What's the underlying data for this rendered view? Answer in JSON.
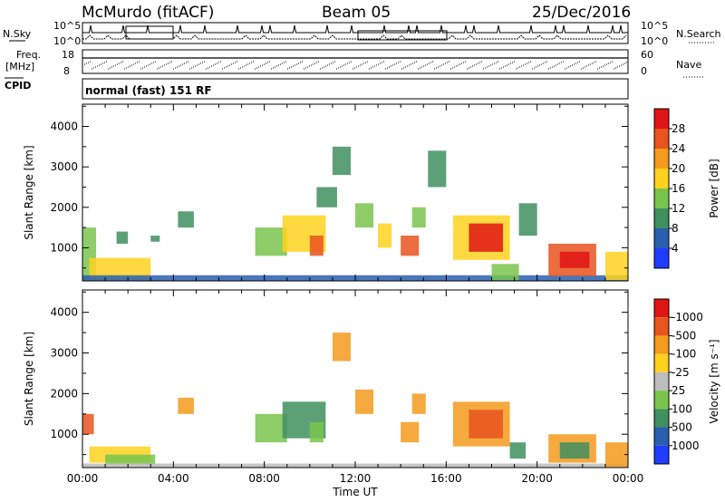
{
  "header": {
    "station": "McMurdo (fitACF)",
    "beam": "Beam 05",
    "date": "25/Dec/2016"
  },
  "status_panel": {
    "nsky_label": "N.Sky",
    "nsearch_label": "N.Search",
    "left_ticks": [
      "10^5",
      "10^0"
    ],
    "right_ticks": [
      "10^5",
      "10^0"
    ],
    "freq_label": "Freq.",
    "freq_unit": "[MHz]",
    "freq_ticks": [
      "18",
      "8"
    ],
    "nave_label": "Nave",
    "nave_ticks": [
      "60",
      "0"
    ],
    "cpid_label": "CPID",
    "cpid_text": "normal (fast) 151 RF"
  },
  "chart_data": [
    {
      "type": "heatmap",
      "title": "",
      "ylabel": "Slant Range [km]",
      "xlabel": "",
      "x_range_hours": [
        0,
        24
      ],
      "ylim": [
        180,
        4550
      ],
      "yticks": [
        1000,
        2000,
        3000,
        4000
      ],
      "colorbar_label": "Power [dB]",
      "colorbar_ticks": [
        "4",
        "8",
        "12",
        "16",
        "20",
        "24",
        "28"
      ],
      "colorbar_colors": [
        "#1f3cff",
        "#2a5fb0",
        "#3f8f5f",
        "#7ac44d",
        "#ffd21e",
        "#f59a1c",
        "#e8541e",
        "#e01414"
      ],
      "patches": [
        {
          "t0": 0.0,
          "t1": 0.6,
          "r0": 200,
          "r1": 1500,
          "c": 3
        },
        {
          "t0": 0.3,
          "t1": 3.0,
          "r0": 200,
          "r1": 750,
          "c": 4
        },
        {
          "t0": 0.0,
          "t1": 24.0,
          "r0": 190,
          "r1": 320,
          "c": 1
        },
        {
          "t0": 1.5,
          "t1": 2.0,
          "r0": 1100,
          "r1": 1400,
          "c": 2
        },
        {
          "t0": 3.0,
          "t1": 3.4,
          "r0": 1150,
          "r1": 1300,
          "c": 2
        },
        {
          "t0": 4.2,
          "t1": 4.9,
          "r0": 1500,
          "r1": 1900,
          "c": 2
        },
        {
          "t0": 7.6,
          "t1": 9.0,
          "r0": 800,
          "r1": 1500,
          "c": 3
        },
        {
          "t0": 8.8,
          "t1": 10.7,
          "r0": 900,
          "r1": 1800,
          "c": 4
        },
        {
          "t0": 10.0,
          "t1": 10.6,
          "r0": 800,
          "r1": 1300,
          "c": 6
        },
        {
          "t0": 10.3,
          "t1": 11.2,
          "r0": 2000,
          "r1": 2500,
          "c": 2
        },
        {
          "t0": 11.0,
          "t1": 11.8,
          "r0": 2800,
          "r1": 3500,
          "c": 2
        },
        {
          "t0": 12.0,
          "t1": 12.8,
          "r0": 1500,
          "r1": 2100,
          "c": 3
        },
        {
          "t0": 13.0,
          "t1": 13.6,
          "r0": 1000,
          "r1": 1600,
          "c": 4
        },
        {
          "t0": 14.0,
          "t1": 14.8,
          "r0": 800,
          "r1": 1300,
          "c": 6
        },
        {
          "t0": 14.5,
          "t1": 15.1,
          "r0": 1500,
          "r1": 2000,
          "c": 3
        },
        {
          "t0": 15.2,
          "t1": 16.0,
          "r0": 2500,
          "r1": 3400,
          "c": 2
        },
        {
          "t0": 16.3,
          "t1": 18.8,
          "r0": 700,
          "r1": 1800,
          "c": 4
        },
        {
          "t0": 17.0,
          "t1": 18.5,
          "r0": 900,
          "r1": 1600,
          "c": 7
        },
        {
          "t0": 18.0,
          "t1": 19.2,
          "r0": 200,
          "r1": 600,
          "c": 3
        },
        {
          "t0": 19.2,
          "t1": 20.0,
          "r0": 1300,
          "r1": 2100,
          "c": 2
        },
        {
          "t0": 20.5,
          "t1": 22.6,
          "r0": 300,
          "r1": 1100,
          "c": 6
        },
        {
          "t0": 21.0,
          "t1": 22.3,
          "r0": 500,
          "r1": 900,
          "c": 7
        },
        {
          "t0": 23.0,
          "t1": 24.0,
          "r0": 200,
          "r1": 900,
          "c": 4
        }
      ]
    },
    {
      "type": "heatmap",
      "title": "",
      "ylabel": "Slant Range [km]",
      "xlabel": "Time UT",
      "x_range_hours": [
        0,
        24
      ],
      "ylim": [
        180,
        4550
      ],
      "yticks": [
        1000,
        2000,
        3000,
        4000
      ],
      "xticks": [
        "00:00",
        "04:00",
        "08:00",
        "12:00",
        "16:00",
        "20:00",
        "00:00"
      ],
      "colorbar_label": "Velocity [m s⁻¹]",
      "colorbar_ticks": [
        "1000",
        "500",
        "100",
        "25",
        "-25",
        "-100",
        "-500",
        "-1000"
      ],
      "colorbar_colors": [
        "#1f3cff",
        "#2a5fb0",
        "#3f8f5f",
        "#7ac44d",
        "#bdbdbd",
        "#ffd21e",
        "#f59a1c",
        "#e8541e",
        "#e01414"
      ],
      "patches": [
        {
          "t0": 0.0,
          "t1": 0.5,
          "r0": 1000,
          "r1": 1500,
          "c": 7
        },
        {
          "t0": 0.3,
          "t1": 3.0,
          "r0": 300,
          "r1": 700,
          "c": 5
        },
        {
          "t0": 1.0,
          "t1": 3.2,
          "r0": 250,
          "r1": 500,
          "c": 3
        },
        {
          "t0": 0.0,
          "t1": 24.0,
          "r0": 190,
          "r1": 280,
          "c": 4
        },
        {
          "t0": 4.2,
          "t1": 4.9,
          "r0": 1500,
          "r1": 1900,
          "c": 6
        },
        {
          "t0": 7.6,
          "t1": 9.0,
          "r0": 800,
          "r1": 1500,
          "c": 3
        },
        {
          "t0": 8.8,
          "t1": 10.7,
          "r0": 900,
          "r1": 1800,
          "c": 2
        },
        {
          "t0": 10.0,
          "t1": 10.6,
          "r0": 800,
          "r1": 1300,
          "c": 3
        },
        {
          "t0": 11.0,
          "t1": 11.8,
          "r0": 2800,
          "r1": 3500,
          "c": 6
        },
        {
          "t0": 12.0,
          "t1": 12.8,
          "r0": 1500,
          "r1": 2100,
          "c": 6
        },
        {
          "t0": 14.0,
          "t1": 14.8,
          "r0": 800,
          "r1": 1300,
          "c": 6
        },
        {
          "t0": 14.5,
          "t1": 15.1,
          "r0": 1500,
          "r1": 2000,
          "c": 6
        },
        {
          "t0": 16.3,
          "t1": 18.8,
          "r0": 700,
          "r1": 1800,
          "c": 6
        },
        {
          "t0": 17.0,
          "t1": 18.5,
          "r0": 900,
          "r1": 1600,
          "c": 7
        },
        {
          "t0": 18.8,
          "t1": 19.5,
          "r0": 400,
          "r1": 800,
          "c": 2
        },
        {
          "t0": 20.5,
          "t1": 22.6,
          "r0": 300,
          "r1": 1000,
          "c": 6
        },
        {
          "t0": 21.0,
          "t1": 22.3,
          "r0": 400,
          "r1": 800,
          "c": 2
        },
        {
          "t0": 23.0,
          "t1": 24.0,
          "r0": 200,
          "r1": 800,
          "c": 6
        }
      ]
    }
  ]
}
